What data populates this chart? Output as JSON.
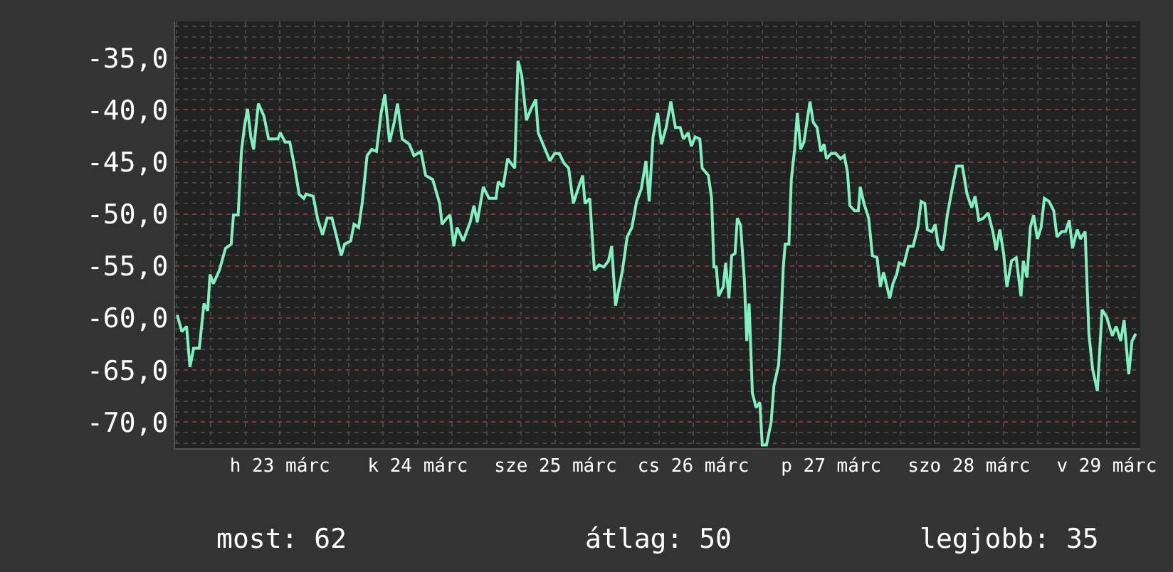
{
  "chart_data": {
    "type": "line",
    "x": [
      "--03-22T18:07",
      "--03-22T18:56",
      "--03-22T19:45",
      "--03-22T20:20",
      "--03-22T20:59",
      "--03-22T21:58",
      "--03-22T22:47",
      "--03-22T23:26",
      "--03-22T23:50",
      "--03-23T00:25",
      "--03-23T01:28",
      "--03-23T02:32",
      "--03-23T03:31",
      "--03-23T03:55",
      "--03-23T04:44",
      "--03-23T05:18",
      "--03-23T05:48",
      "--03-23T06:22",
      "--03-23T06:56",
      "--03-23T07:26",
      "--03-23T08:15",
      "--03-23T09:13",
      "--03-23T10:02",
      "--03-23T11:40",
      "--03-23T12:05",
      "--03-23T12:54",
      "--03-23T13:43",
      "--03-23T14:32",
      "--03-23T15:21",
      "--03-23T16:10",
      "--03-23T16:34",
      "--03-23T17:48",
      "--03-23T18:37",
      "--03-23T19:26",
      "--03-23T20:14",
      "--03-23T21:04",
      "--03-23T21:53",
      "--03-23T22:41",
      "--03-23T23:16",
      "--03-24T00:20",
      "--03-24T00:54",
      "--03-24T01:43",
      "--03-24T02:22",
      "--03-24T03:11",
      "--03-24T04:00",
      "--03-24T04:49",
      "--03-24T05:38",
      "--03-24T06:17",
      "--03-24T07:06",
      "--03-24T07:55",
      "--03-24T08:29",
      "--03-24T09:18",
      "--03-24T10:32",
      "--03-24T11:21",
      "--03-24T12:34",
      "--03-24T13:23",
      "--03-24T14:37",
      "--03-24T15:50",
      "--03-24T16:14",
      "--03-24T17:04",
      "--03-24T17:38",
      "--03-24T18:17",
      "--03-24T18:52",
      "--03-24T19:55",
      "--03-24T21:08",
      "--03-24T21:48",
      "--03-24T22:22",
      "--03-24T23:26",
      "--03-25T00:25",
      "--03-25T01:38",
      "--03-25T02:02",
      "--03-25T02:52",
      "--03-25T03:40",
      "--03-25T04:54",
      "--03-25T05:28",
      "--03-25T06:07",
      "--03-25T06:56",
      "--03-25T07:45",
      "--03-25T08:34",
      "--03-25T08:59",
      "--03-25T10:12",
      "--03-25T11:01",
      "--03-25T11:50",
      "--03-25T12:39",
      "--03-25T13:28",
      "--03-25T14:17",
      "--03-25T15:06",
      "--03-25T15:55",
      "--03-25T16:44",
      "--03-25T17:08",
      "--03-25T17:58",
      "--03-25T18:46",
      "--03-25T19:35",
      "--03-25T20:25",
      "--03-25T21:13",
      "--03-25T21:47",
      "--03-25T22:27",
      "--03-25T22:51",
      "--03-25T23:40",
      "--03-26T00:29",
      "--03-26T01:18",
      "--03-26T02:07",
      "--03-26T02:56",
      "--03-26T03:45",
      "--03-26T04:19",
      "--03-26T04:59",
      "--03-26T05:47",
      "--03-26T06:27",
      "--03-26T07:16",
      "--03-26T08:05",
      "--03-26T08:53",
      "--03-26T09:43",
      "--03-26T10:17",
      "--03-26T11:06",
      "--03-26T11:40",
      "--03-26T12:19",
      "--03-26T13:08",
      "--03-26T13:33",
      "--03-26T14:37",
      "--03-26T15:11",
      "--03-26T15:35",
      "--03-26T16:00",
      "--03-26T16:24",
      "--03-26T17:13",
      "--03-26T17:38",
      "--03-26T18:12",
      "--03-26T18:41",
      "--03-26T19:16",
      "--03-26T19:40",
      "--03-26T20:14",
      "--03-26T20:53",
      "--03-26T21:18",
      "--03-26T21:43",
      "--03-26T22:17",
      "--03-26T22:56",
      "--03-26T23:35",
      "--03-27T00:00",
      "--03-27T00:44",
      "--03-27T01:33",
      "--03-27T02:02",
      "--03-27T02:51",
      "--03-27T03:11",
      "--03-27T03:40",
      "--03-27T04:00",
      "--03-27T04:39",
      "--03-27T05:04",
      "--03-27T05:38",
      "--03-27T06:07",
      "--03-27T06:41",
      "--03-27T07:16",
      "--03-27T08:19",
      "--03-27T08:53",
      "--03-27T09:33",
      "--03-27T10:12",
      "--03-27T10:46",
      "--03-27T11:11",
      "--03-27T12:00",
      "--03-27T12:49",
      "--03-27T13:38",
      "--03-27T14:17",
      "--03-27T14:51",
      "--03-27T15:16",
      "--03-27T16:05",
      "--03-27T16:44",
      "--03-27T17:04",
      "--03-27T17:43",
      "--03-27T18:32",
      "--03-27T19:11",
      "--03-27T20:00",
      "--03-27T20:34",
      "--03-27T21:08",
      "--03-27T22:12",
      "--03-27T22:46",
      "--03-27T23:25",
      "--03-27T23:50",
      "--03-28T00:39",
      "--03-28T01:28",
      "--03-28T02:17",
      "--03-28T03:06",
      "--03-28T03:40",
      "--03-28T04:19",
      "--03-28T04:44",
      "--03-28T05:33",
      "--03-28T06:07",
      "--03-28T06:37",
      "--03-28T07:25",
      "--03-28T08:14",
      "--03-28T09:04",
      "--03-28T09:52",
      "--03-28T10:51",
      "--03-28T11:40",
      "--03-28T12:29",
      "--03-28T13:04",
      "--03-28T13:43",
      "--03-28T14:32",
      "--03-28T15:20",
      "--03-28T16:10",
      "--03-28T16:44",
      "--03-28T17:23",
      "--03-28T18:02",
      "--03-28T18:37",
      "--03-28T19:25",
      "--03-28T20:14",
      "--03-28T21:04",
      "--03-28T21:28",
      "--03-28T22:07",
      "--03-28T22:41",
      "--03-28T23:16",
      "--03-28T23:55",
      "--03-29T00:34",
      "--03-29T01:08",
      "--03-29T01:57",
      "--03-29T02:46",
      "--03-29T03:20",
      "--03-29T04:10",
      "--03-29T04:49",
      "--03-29T05:28",
      "--03-29T06:02",
      "--03-29T06:51",
      "--03-29T07:25",
      "--03-29T08:14",
      "--03-29T08:53",
      "--03-29T09:32",
      "--03-29T10:22",
      "--03-29T11:11",
      "--03-29T11:59",
      "--03-29T12:58",
      "--03-29T13:38",
      "--03-29T14:26",
      "--03-29T15:01",
      "--03-29T15:50",
      "--03-29T16:24",
      "--03-29T17:03"
    ],
    "series": [
      {
        "color": "#80f0c0",
        "values": [
          -59.7,
          -61.3,
          -60.8,
          -64.7,
          -62.9,
          -62.9,
          -58.6,
          -59.3,
          -55.8,
          -56.7,
          -55.4,
          -53.3,
          -52.9,
          -50.1,
          -50.1,
          -44.0,
          -41.7,
          -39.9,
          -42.6,
          -43.8,
          -39.4,
          -40.6,
          -42.8,
          -42.8,
          -42.2,
          -43.1,
          -43.1,
          -45.4,
          -48.1,
          -48.5,
          -48.1,
          -48.3,
          -50.6,
          -52.0,
          -50.4,
          -50.4,
          -52.2,
          -54.0,
          -52.9,
          -52.6,
          -51.0,
          -51.3,
          -48.8,
          -44.4,
          -43.8,
          -44.0,
          -40.3,
          -38.5,
          -43.1,
          -41.2,
          -39.4,
          -42.8,
          -43.3,
          -44.4,
          -44.0,
          -46.3,
          -46.7,
          -49.0,
          -51.0,
          -50.4,
          -50.1,
          -53.1,
          -51.3,
          -52.6,
          -50.8,
          -49.2,
          -50.8,
          -47.4,
          -48.5,
          -48.5,
          -46.9,
          -47.4,
          -44.7,
          -45.6,
          -35.3,
          -36.7,
          -41.0,
          -39.9,
          -39.0,
          -42.2,
          -43.8,
          -44.9,
          -44.2,
          -44.2,
          -45.1,
          -45.6,
          -49.0,
          -47.6,
          -46.3,
          -49.0,
          -48.5,
          -55.4,
          -54.9,
          -55.1,
          -54.5,
          -53.1,
          -58.8,
          -57.7,
          -55.4,
          -52.2,
          -51.3,
          -48.8,
          -47.6,
          -44.9,
          -48.8,
          -42.6,
          -40.3,
          -43.3,
          -41.7,
          -39.2,
          -41.7,
          -41.7,
          -42.8,
          -42.2,
          -43.5,
          -42.6,
          -42.8,
          -45.6,
          -46.3,
          -48.5,
          -55.1,
          -55.1,
          -57.9,
          -57.0,
          -54.7,
          -58.1,
          -54.0,
          -53.8,
          -50.4,
          -51.1,
          -56.3,
          -62.2,
          -58.6,
          -67.2,
          -68.6,
          -68.1,
          -72.2,
          -72.2,
          -70.0,
          -66.5,
          -64.5,
          -61.3,
          -55.1,
          -52.9,
          -52.9,
          -46.7,
          -43.8,
          -40.3,
          -43.8,
          -43.1,
          -39.2,
          -41.2,
          -41.7,
          -44.0,
          -43.3,
          -44.7,
          -44.2,
          -44.2,
          -44.7,
          -44.4,
          -46.0,
          -49.2,
          -49.7,
          -49.7,
          -47.4,
          -49.0,
          -50.4,
          -54.0,
          -54.2,
          -57.0,
          -55.6,
          -58.1,
          -56.7,
          -55.8,
          -54.7,
          -54.9,
          -53.1,
          -53.1,
          -51.3,
          -48.8,
          -49.0,
          -51.5,
          -51.7,
          -51.0,
          -52.9,
          -53.5,
          -50.1,
          -47.6,
          -45.4,
          -45.4,
          -48.1,
          -49.4,
          -48.3,
          -50.6,
          -50.4,
          -49.9,
          -51.7,
          -53.5,
          -51.5,
          -53.8,
          -57.0,
          -54.5,
          -54.2,
          -57.9,
          -54.5,
          -56.1,
          -51.3,
          -50.1,
          -52.4,
          -51.3,
          -48.5,
          -48.8,
          -49.7,
          -52.2,
          -51.7,
          -51.7,
          -50.6,
          -53.3,
          -51.5,
          -52.4,
          -51.7,
          -61.5,
          -64.9,
          -67.0,
          -59.2,
          -59.9,
          -61.7,
          -60.8,
          -62.2,
          -60.2,
          -65.4,
          -62.2,
          -61.5
        ]
      }
    ],
    "xlim": [
      "--03-22T17:45",
      "--03-29T17:50"
    ],
    "xticks": [
      {
        "value": "--03-23T12:00",
        "label": "h 23 márc"
      },
      {
        "value": "--03-24T12:00",
        "label": "k 24 márc"
      },
      {
        "value": "--03-25T12:00",
        "label": "sze 25 márc"
      },
      {
        "value": "--03-26T12:00",
        "label": "cs 26 márc"
      },
      {
        "value": "--03-27T12:00",
        "label": "p 27 márc"
      },
      {
        "value": "--03-28T12:00",
        "label": "szo 28 márc"
      },
      {
        "value": "--03-29T12:00",
        "label": "v 29 márc"
      }
    ],
    "ylim": [
      -72.5,
      -31.5
    ],
    "yticks": [
      {
        "value": -70,
        "label": "-70,0"
      },
      {
        "value": -65,
        "label": "-65,0"
      },
      {
        "value": -60,
        "label": "-60,0"
      },
      {
        "value": -55,
        "label": "-55,0"
      },
      {
        "value": -50,
        "label": "-50,0"
      },
      {
        "value": -45,
        "label": "-45,0"
      },
      {
        "value": -40,
        "label": "-40,0"
      },
      {
        "value": -35,
        "label": "-35,0"
      }
    ],
    "grid": true,
    "annotations": [
      "most: 62",
      "átlag: 50",
      "legjobb: 35"
    ]
  }
}
